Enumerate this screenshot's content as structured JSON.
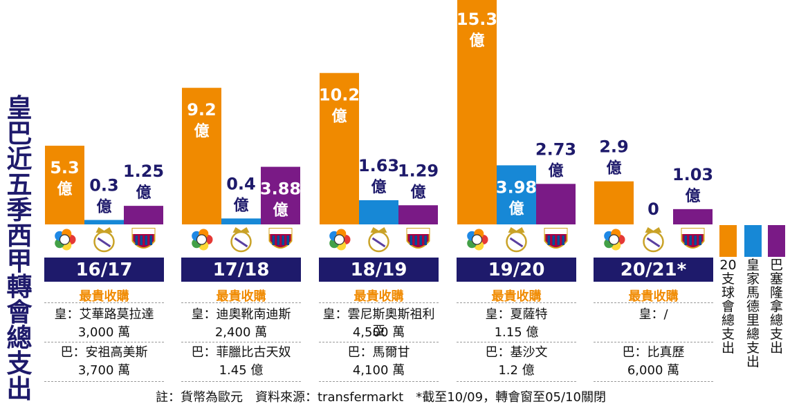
{
  "title_chars": [
    "皇",
    "巴",
    "近",
    "五",
    "季",
    "西",
    "甲",
    "轉",
    "會",
    "總",
    "支",
    "出"
  ],
  "colors": {
    "league": "#f08a00",
    "real": "#1788d6",
    "barca": "#7a1a86",
    "band": "#1e1a6b"
  },
  "chart_data": {
    "type": "bar",
    "categories": [
      "16/17",
      "17/18",
      "18/19",
      "19/20",
      "20/21*"
    ],
    "unit": "億",
    "series": [
      {
        "name": "20支球會總支出",
        "values": [
          5.3,
          9.2,
          10.2,
          15.3,
          2.9
        ],
        "labels": [
          "5.3",
          "9.2",
          "10.2",
          "15.3",
          "2.9"
        ]
      },
      {
        "name": "皇家馬德里總支出",
        "values": [
          0.3,
          0.4,
          1.63,
          3.98,
          0
        ],
        "labels": [
          "0.3",
          "0.4",
          "1.63",
          "3.98",
          "0"
        ]
      },
      {
        "name": "巴塞隆拿總支出",
        "values": [
          1.25,
          3.88,
          1.29,
          2.73,
          1.03
        ],
        "labels": [
          "1.25",
          "3.88",
          "1.29",
          "2.73",
          "1.03"
        ]
      }
    ]
  },
  "seasons": [
    {
      "label": "16/17",
      "best": "最貴收購",
      "real_line1": "皇：艾華路莫拉達",
      "real_line2": "3,000 萬",
      "barca_line1": "巴：安祖高美斯",
      "barca_line2": "3,700 萬"
    },
    {
      "label": "17/18",
      "best": "最貴收購",
      "real_line1": "皇：迪奧靴南迪斯",
      "real_line2": "2,400 萬",
      "barca_line1": "巴：菲臘比古天奴",
      "barca_line2": "1.45 億"
    },
    {
      "label": "18/19",
      "best": "最貴收購",
      "real_line1": "皇：雲尼斯奧斯祖利亞",
      "real_line2": "4,500 萬",
      "barca_line1": "巴：馬爾甘",
      "barca_line2": "4,100 萬"
    },
    {
      "label": "19/20",
      "best": "最貴收購",
      "real_line1": "皇：夏薩特",
      "real_line2": "1.15 億",
      "barca_line1": "巴：基沙文",
      "barca_line2": "1.2 億"
    },
    {
      "label": "20/21*",
      "best": "最貴收購",
      "real_line1": "皇：/",
      "real_line2": "",
      "barca_line1": "巴：比真歷",
      "barca_line2": "6,000 萬"
    }
  ],
  "legend": [
    {
      "label": "20支球會總支出",
      "color": "#f08a00"
    },
    {
      "label": "皇家馬德里總支出",
      "color": "#1788d6"
    },
    {
      "label": "巴塞隆拿總支出",
      "color": "#7a1a86"
    }
  ],
  "footnote": "註：貨幣為歐元　資料來源：transfermarkt　*截至10/09，轉會窗至05/10關閉"
}
